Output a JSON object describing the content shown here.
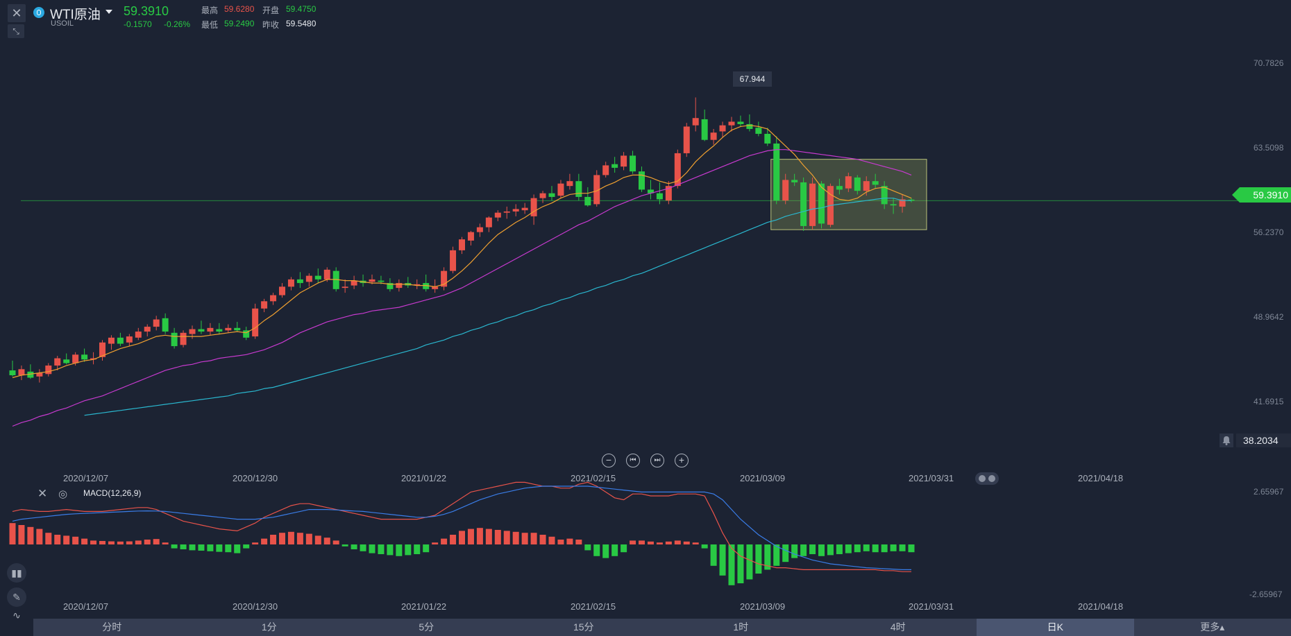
{
  "symbol": {
    "name": "WTI原油",
    "code": "USOIL",
    "price": "59.3910",
    "change": "-0.1570",
    "change_pct": "-0.26%"
  },
  "stats": {
    "high_label": "最高",
    "high_value": "59.6280",
    "open_label": "开盘",
    "open_value": "59.4750",
    "low_label": "最低",
    "low_value": "59.2490",
    "prev_close_label": "昨收",
    "prev_close_value": "59.5480"
  },
  "colors": {
    "up": "#e8534a",
    "down": "#29c944",
    "ma_short": "#f0a030",
    "ma_mid": "#c83ad0",
    "ma_long": "#2ab8d0",
    "macd_dif": "#e8534a",
    "macd_dea": "#3a7de8",
    "background": "#1c2333"
  },
  "price_axis": [
    "70.7826",
    "63.5098",
    "56.2370",
    "48.9642",
    "41.6915"
  ],
  "current_price_tag": "59.3910",
  "alert_value": "38.2034",
  "peak_label": "67.944",
  "dates": [
    "2020/12/07",
    "2020/12/30",
    "2021/01/22",
    "2021/02/15",
    "2021/03/09",
    "2021/03/31",
    "2021/04/18"
  ],
  "macd": {
    "title": "MACD(12,26,9)",
    "axis": [
      "2.65967",
      "-2.65967"
    ]
  },
  "tabs": [
    "分时",
    "1分",
    "5分",
    "15分",
    "1时",
    "4时",
    "日K",
    "更多▴"
  ],
  "active_tab": "日K",
  "chart_data": {
    "type": "candlestick",
    "title": "",
    "ylim": [
      38.2,
      72.5
    ],
    "x_start": "2020/12/01",
    "last_close": 59.391,
    "y_axis_ticks": [
      70.7826,
      63.5098,
      56.237,
      48.9642,
      41.6915
    ],
    "candles": [
      [
        45.4,
        46.2,
        44.9,
        45.0
      ],
      [
        45.0,
        45.8,
        44.6,
        45.5
      ],
      [
        45.3,
        45.9,
        44.7,
        44.8
      ],
      [
        44.9,
        45.5,
        44.4,
        45.2
      ],
      [
        45.1,
        46.0,
        44.9,
        45.8
      ],
      [
        45.8,
        46.6,
        45.4,
        46.4
      ],
      [
        46.3,
        46.8,
        45.9,
        46.0
      ],
      [
        46.0,
        46.9,
        45.8,
        46.7
      ],
      [
        46.7,
        47.2,
        46.1,
        46.3
      ],
      [
        46.3,
        46.9,
        45.9,
        46.4
      ],
      [
        46.5,
        47.9,
        46.2,
        47.7
      ],
      [
        47.6,
        48.3,
        47.1,
        48.1
      ],
      [
        48.1,
        48.5,
        47.4,
        47.6
      ],
      [
        47.7,
        48.4,
        47.4,
        48.2
      ],
      [
        48.1,
        48.9,
        47.9,
        48.6
      ],
      [
        48.6,
        49.2,
        48.2,
        49.0
      ],
      [
        49.0,
        49.9,
        48.7,
        49.6
      ],
      [
        49.7,
        50.1,
        48.4,
        48.6
      ],
      [
        48.5,
        48.9,
        47.2,
        47.4
      ],
      [
        47.5,
        48.7,
        47.3,
        48.5
      ],
      [
        48.4,
        49.1,
        48.0,
        48.8
      ],
      [
        48.8,
        49.5,
        48.4,
        48.6
      ],
      [
        48.6,
        49.3,
        48.3,
        48.9
      ],
      [
        48.8,
        49.3,
        48.4,
        48.6
      ],
      [
        48.7,
        49.2,
        48.5,
        48.9
      ],
      [
        48.9,
        49.4,
        48.6,
        48.7
      ],
      [
        48.7,
        49.0,
        47.9,
        48.1
      ],
      [
        48.2,
        50.9,
        48.0,
        50.5
      ],
      [
        50.5,
        51.3,
        50.2,
        51.1
      ],
      [
        51.1,
        51.8,
        50.8,
        51.6
      ],
      [
        51.6,
        52.6,
        51.4,
        52.3
      ],
      [
        52.3,
        53.1,
        52.0,
        52.9
      ],
      [
        52.9,
        53.5,
        52.2,
        52.6
      ],
      [
        52.7,
        53.4,
        52.3,
        53.2
      ],
      [
        53.2,
        53.8,
        52.6,
        52.9
      ],
      [
        52.9,
        53.9,
        52.7,
        53.7
      ],
      [
        53.6,
        53.9,
        51.9,
        52.1
      ],
      [
        52.2,
        52.9,
        51.8,
        52.3
      ],
      [
        52.4,
        53.2,
        52.1,
        52.8
      ],
      [
        52.8,
        53.3,
        52.3,
        52.6
      ],
      [
        52.7,
        53.3,
        52.5,
        52.9
      ],
      [
        52.8,
        53.2,
        52.5,
        52.7
      ],
      [
        52.6,
        53.0,
        51.9,
        52.1
      ],
      [
        52.2,
        52.9,
        51.9,
        52.6
      ],
      [
        52.6,
        53.1,
        52.2,
        52.4
      ],
      [
        52.4,
        52.9,
        52.1,
        52.5
      ],
      [
        52.6,
        53.3,
        51.9,
        52.1
      ],
      [
        52.1,
        52.9,
        51.8,
        52.3
      ],
      [
        52.3,
        53.9,
        52.0,
        53.6
      ],
      [
        53.6,
        55.6,
        53.4,
        55.3
      ],
      [
        55.3,
        56.4,
        55.0,
        56.2
      ],
      [
        56.1,
        56.9,
        55.7,
        56.8
      ],
      [
        56.8,
        57.5,
        56.4,
        57.2
      ],
      [
        57.2,
        58.1,
        56.8,
        58.0
      ],
      [
        58.0,
        58.6,
        57.7,
        58.4
      ],
      [
        58.4,
        58.9,
        57.9,
        58.5
      ],
      [
        58.5,
        59.1,
        58.1,
        58.7
      ],
      [
        58.6,
        59.2,
        58.3,
        58.8
      ],
      [
        58.1,
        59.9,
        57.4,
        59.6
      ],
      [
        59.6,
        60.2,
        59.2,
        60.0
      ],
      [
        60.0,
        60.6,
        59.4,
        59.7
      ],
      [
        59.8,
        61.1,
        59.6,
        60.8
      ],
      [
        60.6,
        61.6,
        60.3,
        61.0
      ],
      [
        61.0,
        61.6,
        59.4,
        59.7
      ],
      [
        59.7,
        60.5,
        58.9,
        59.0
      ],
      [
        59.1,
        61.9,
        58.9,
        61.5
      ],
      [
        61.5,
        62.6,
        61.3,
        62.3
      ],
      [
        62.4,
        63.0,
        61.7,
        62.1
      ],
      [
        62.2,
        63.4,
        61.9,
        63.1
      ],
      [
        63.1,
        63.5,
        61.6,
        61.8
      ],
      [
        61.8,
        62.2,
        60.1,
        60.3
      ],
      [
        60.3,
        61.1,
        59.5,
        60.0
      ],
      [
        60.0,
        60.9,
        59.1,
        59.5
      ],
      [
        59.4,
        61.0,
        59.1,
        60.6
      ],
      [
        60.6,
        63.6,
        60.4,
        63.3
      ],
      [
        63.3,
        65.8,
        63.0,
        65.5
      ],
      [
        65.6,
        67.9,
        65.1,
        66.2
      ],
      [
        66.1,
        66.9,
        64.3,
        64.4
      ],
      [
        64.4,
        65.3,
        64.0,
        65.0
      ],
      [
        65.1,
        65.9,
        64.6,
        65.6
      ],
      [
        65.6,
        66.3,
        65.1,
        65.9
      ],
      [
        65.9,
        66.4,
        65.5,
        65.7
      ],
      [
        65.7,
        66.5,
        65.1,
        65.3
      ],
      [
        65.4,
        65.9,
        64.7,
        64.9
      ],
      [
        64.9,
        65.4,
        63.9,
        64.1
      ],
      [
        64.1,
        64.7,
        59.1,
        59.4
      ],
      [
        59.4,
        61.6,
        59.1,
        61.1
      ],
      [
        61.1,
        61.6,
        60.6,
        60.9
      ],
      [
        60.9,
        61.3,
        56.9,
        57.3
      ],
      [
        57.3,
        61.3,
        57.0,
        60.8
      ],
      [
        60.8,
        61.0,
        57.1,
        57.5
      ],
      [
        57.4,
        60.8,
        57.2,
        60.6
      ],
      [
        60.6,
        61.2,
        59.9,
        60.3
      ],
      [
        60.4,
        61.7,
        60.1,
        61.4
      ],
      [
        61.3,
        61.5,
        59.9,
        60.2
      ],
      [
        60.2,
        61.4,
        59.8,
        61.0
      ],
      [
        61.0,
        61.6,
        60.4,
        60.7
      ],
      [
        60.6,
        61.0,
        58.7,
        59.1
      ],
      [
        59.1,
        59.6,
        58.3,
        59.0
      ],
      [
        58.9,
        59.9,
        58.4,
        59.5
      ],
      [
        59.475,
        59.628,
        59.249,
        59.391
      ]
    ],
    "ma_short": [
      44.8,
      45.0,
      45.1,
      45.2,
      45.3,
      45.5,
      45.8,
      46.0,
      46.2,
      46.3,
      46.6,
      46.9,
      47.2,
      47.4,
      47.6,
      47.9,
      48.2,
      48.3,
      48.2,
      48.2,
      48.2,
      48.2,
      48.3,
      48.4,
      48.5,
      48.6,
      48.5,
      48.9,
      49.5,
      50.0,
      50.6,
      51.2,
      51.8,
      52.2,
      52.6,
      52.9,
      52.9,
      52.8,
      52.8,
      52.7,
      52.6,
      52.6,
      52.5,
      52.5,
      52.5,
      52.4,
      52.4,
      52.3,
      52.5,
      53.0,
      53.6,
      54.3,
      55.1,
      55.9,
      56.6,
      57.1,
      57.6,
      58.0,
      58.5,
      58.9,
      59.2,
      59.6,
      59.9,
      60.0,
      60.0,
      60.2,
      60.6,
      60.9,
      61.3,
      61.5,
      61.5,
      61.3,
      61.0,
      60.8,
      61.0,
      61.7,
      62.6,
      63.3,
      63.9,
      64.6,
      65.2,
      65.5,
      65.6,
      65.5,
      65.3,
      64.6,
      63.9,
      63.2,
      62.3,
      61.5,
      60.5,
      59.9,
      59.5,
      59.4,
      59.6,
      60.1,
      60.4,
      60.5,
      60.2,
      59.9,
      59.6
    ],
    "ma_mid": [
      40.8,
      41.1,
      41.3,
      41.6,
      41.8,
      42.1,
      42.3,
      42.6,
      42.9,
      43.1,
      43.3,
      43.6,
      43.9,
      44.2,
      44.5,
      44.8,
      45.1,
      45.4,
      45.6,
      45.8,
      45.9,
      46.1,
      46.2,
      46.4,
      46.5,
      46.6,
      46.7,
      46.9,
      47.1,
      47.4,
      47.7,
      48.1,
      48.5,
      48.8,
      49.1,
      49.4,
      49.6,
      49.8,
      50.0,
      50.1,
      50.3,
      50.4,
      50.5,
      50.6,
      50.8,
      51.0,
      51.2,
      51.4,
      51.6,
      51.9,
      52.2,
      52.6,
      53.0,
      53.4,
      53.8,
      54.2,
      54.6,
      55.0,
      55.4,
      55.8,
      56.2,
      56.6,
      57.0,
      57.4,
      57.7,
      58.1,
      58.5,
      58.9,
      59.2,
      59.5,
      59.8,
      60.0,
      60.2,
      60.4,
      60.7,
      61.0,
      61.3,
      61.6,
      61.9,
      62.2,
      62.5,
      62.8,
      63.1,
      63.3,
      63.5,
      63.6,
      63.6,
      63.5,
      63.4,
      63.3,
      63.2,
      63.1,
      63.0,
      62.9,
      62.8,
      62.6,
      62.4,
      62.2,
      62.0,
      61.8,
      61.5
    ],
    "ma_long": [
      null,
      null,
      null,
      null,
      null,
      null,
      null,
      null,
      41.7,
      41.8,
      41.9,
      42.0,
      42.1,
      42.2,
      42.3,
      42.4,
      42.5,
      42.6,
      42.7,
      42.8,
      42.9,
      43.0,
      43.1,
      43.2,
      43.3,
      43.5,
      43.6,
      43.7,
      43.9,
      44.0,
      44.2,
      44.4,
      44.6,
      44.8,
      45.0,
      45.2,
      45.4,
      45.6,
      45.8,
      46.0,
      46.2,
      46.4,
      46.6,
      46.8,
      47.0,
      47.2,
      47.5,
      47.7,
      47.9,
      48.2,
      48.4,
      48.7,
      48.9,
      49.2,
      49.4,
      49.7,
      49.9,
      50.2,
      50.4,
      50.7,
      50.9,
      51.2,
      51.4,
      51.7,
      51.9,
      52.2,
      52.4,
      52.7,
      52.9,
      53.2,
      53.4,
      53.7,
      54.0,
      54.3,
      54.6,
      54.9,
      55.2,
      55.5,
      55.8,
      56.1,
      56.4,
      56.7,
      57.0,
      57.3,
      57.6,
      57.8,
      58.1,
      58.3,
      58.5,
      58.7,
      58.8,
      59.0,
      59.1,
      59.2,
      59.3,
      59.4,
      59.5,
      59.6,
      59.6,
      59.4,
      59.4
    ],
    "macd_hist": [
      1.1,
      1.0,
      0.9,
      0.8,
      0.6,
      0.5,
      0.45,
      0.4,
      0.3,
      0.2,
      0.18,
      0.16,
      0.15,
      0.16,
      0.2,
      0.25,
      0.28,
      0.1,
      -0.2,
      -0.25,
      -0.3,
      -0.32,
      -0.35,
      -0.38,
      -0.4,
      -0.45,
      -0.2,
      0.1,
      0.3,
      0.5,
      0.6,
      0.65,
      0.6,
      0.55,
      0.45,
      0.35,
      0.2,
      -0.1,
      -0.25,
      -0.35,
      -0.45,
      -0.5,
      -0.55,
      -0.6,
      -0.55,
      -0.5,
      -0.4,
      0.1,
      0.3,
      0.5,
      0.7,
      0.8,
      0.85,
      0.8,
      0.75,
      0.7,
      0.65,
      0.6,
      0.6,
      0.5,
      0.4,
      0.25,
      0.3,
      0.25,
      -0.3,
      -0.6,
      -0.7,
      -0.6,
      -0.4,
      0.2,
      0.2,
      0.15,
      0.1,
      0.15,
      0.2,
      0.15,
      0.1,
      -0.2,
      -1.1,
      -1.6,
      -2.1,
      -2.0,
      -1.8,
      -1.5,
      -1.3,
      -1.1,
      -0.9,
      -0.7,
      -0.6,
      -0.5,
      -0.6,
      -0.55,
      -0.5,
      -0.45,
      -0.4,
      -0.35,
      -0.4,
      -0.4,
      -0.35,
      -0.35,
      -0.4
    ],
    "macd_dif": [
      1.7,
      1.8,
      1.75,
      1.7,
      1.7,
      1.75,
      1.8,
      1.75,
      1.7,
      1.7,
      1.7,
      1.75,
      1.8,
      1.85,
      1.9,
      1.9,
      1.8,
      1.6,
      1.4,
      1.2,
      1.1,
      1.0,
      0.9,
      0.8,
      0.75,
      0.7,
      0.9,
      1.1,
      1.4,
      1.6,
      1.8,
      2.0,
      2.1,
      2.1,
      2.0,
      1.9,
      1.8,
      1.7,
      1.6,
      1.5,
      1.4,
      1.3,
      1.3,
      1.3,
      1.3,
      1.3,
      1.4,
      1.5,
      1.8,
      2.1,
      2.4,
      2.7,
      2.8,
      2.9,
      3.0,
      3.1,
      3.2,
      3.2,
      3.1,
      3.0,
      3.0,
      2.9,
      2.9,
      3.1,
      3.2,
      3.0,
      2.7,
      2.4,
      2.3,
      2.6,
      2.6,
      2.5,
      2.5,
      2.5,
      2.6,
      2.6,
      2.6,
      2.5,
      1.6,
      0.6,
      -0.2,
      -0.6,
      -0.8,
      -1.0,
      -1.1,
      -1.2,
      -1.2,
      -1.25,
      -1.3,
      -1.3,
      -1.3,
      -1.3,
      -1.3,
      -1.3,
      -1.3,
      -1.3,
      -1.3,
      -1.35,
      -1.35,
      -1.4,
      -1.4
    ],
    "macd_dea": [
      1.2,
      1.3,
      1.35,
      1.4,
      1.45,
      1.5,
      1.55,
      1.58,
      1.6,
      1.62,
      1.64,
      1.66,
      1.68,
      1.7,
      1.72,
      1.73,
      1.72,
      1.7,
      1.65,
      1.6,
      1.55,
      1.5,
      1.45,
      1.4,
      1.35,
      1.3,
      1.3,
      1.3,
      1.35,
      1.4,
      1.5,
      1.6,
      1.7,
      1.8,
      1.8,
      1.8,
      1.78,
      1.75,
      1.72,
      1.7,
      1.65,
      1.6,
      1.55,
      1.5,
      1.45,
      1.4,
      1.4,
      1.45,
      1.55,
      1.7,
      1.9,
      2.1,
      2.3,
      2.45,
      2.6,
      2.7,
      2.8,
      2.9,
      2.95,
      3.0,
      3.0,
      3.0,
      3.0,
      3.0,
      3.0,
      2.95,
      2.9,
      2.85,
      2.8,
      2.75,
      2.7,
      2.7,
      2.7,
      2.7,
      2.7,
      2.7,
      2.7,
      2.7,
      2.6,
      2.3,
      1.8,
      1.3,
      0.9,
      0.5,
      0.2,
      -0.1,
      -0.3,
      -0.5,
      -0.65,
      -0.8,
      -0.9,
      -1.0,
      -1.05,
      -1.1,
      -1.15,
      -1.2,
      -1.22,
      -1.25,
      -1.27,
      -1.3,
      -1.3
    ]
  }
}
